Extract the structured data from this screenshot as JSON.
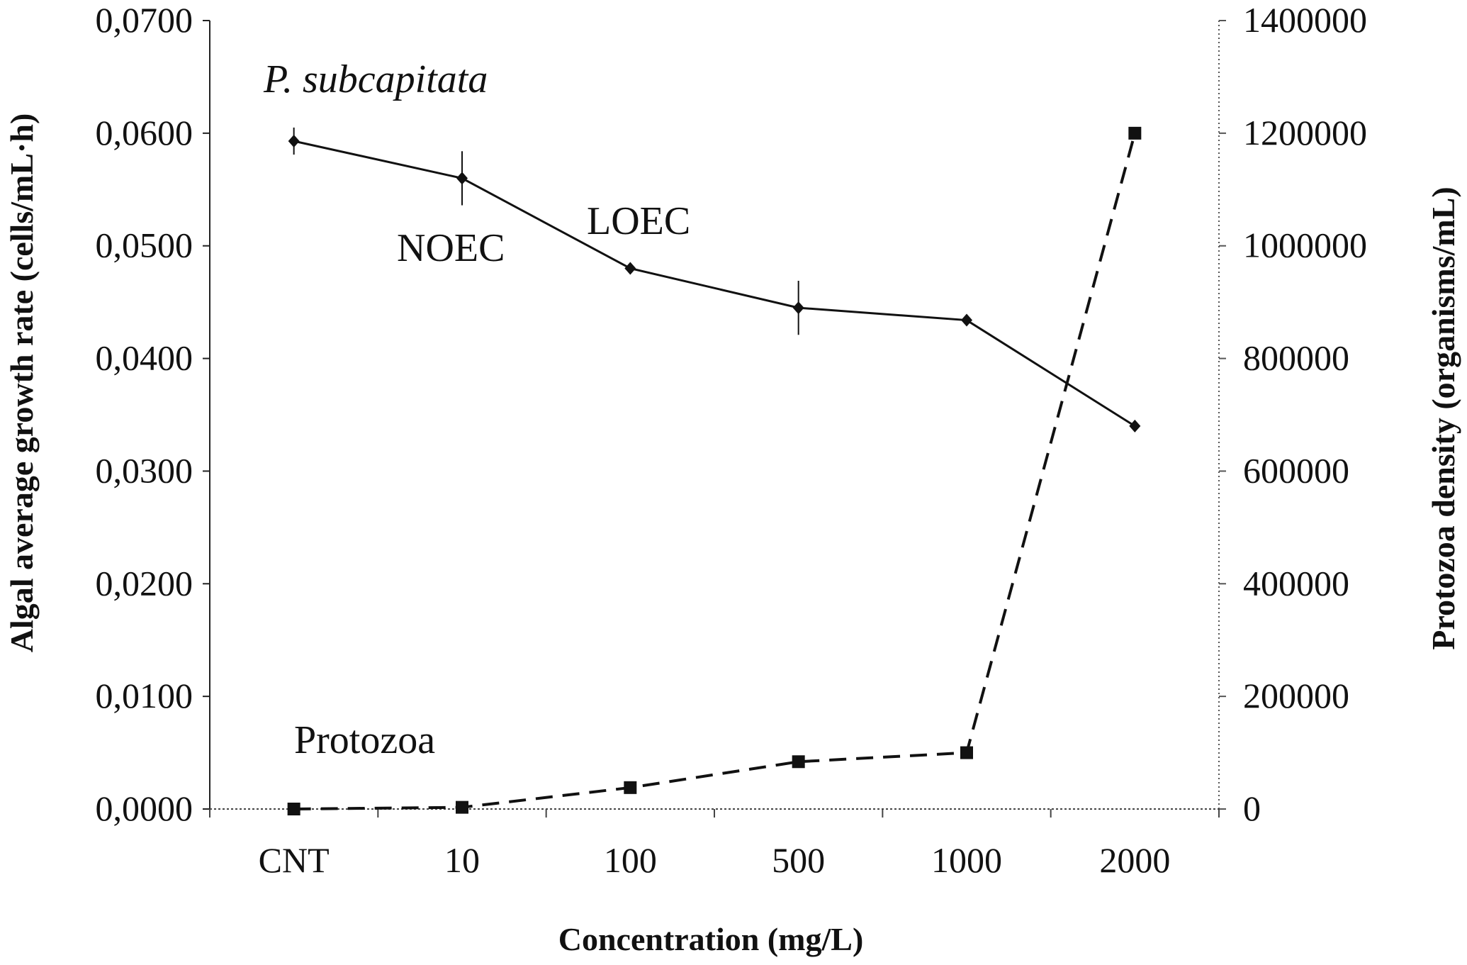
{
  "chart_data": {
    "type": "line",
    "categories": [
      "CNT",
      "10",
      "100",
      "500",
      "1000",
      "2000"
    ],
    "xlabel": "Concentration (mg/L)",
    "ylabel_left": "Algal average growth rate (cells/mL·h)",
    "ylabel_right": "Protozoa density (organisms/mL)",
    "y_left": {
      "lim": [
        0,
        0.07
      ],
      "ticks": [
        0,
        0.01,
        0.02,
        0.03,
        0.04,
        0.05,
        0.06,
        0.07
      ],
      "tick_labels": [
        "0,0000",
        "0,0100",
        "0,0200",
        "0,0300",
        "0,0400",
        "0,0500",
        "0,0600",
        "0,0700"
      ]
    },
    "y_right": {
      "lim": [
        0,
        1400000
      ],
      "ticks": [
        0,
        200000,
        400000,
        600000,
        800000,
        1000000,
        1200000,
        1400000
      ],
      "tick_labels": [
        "0",
        "200000",
        "400000",
        "600000",
        "800000",
        "1000000",
        "1200000",
        "1400000"
      ]
    },
    "series": [
      {
        "name": "P. subcapitata",
        "axis": "left",
        "style": "solid",
        "marker": "diamond",
        "values": [
          0.0593,
          0.056,
          0.048,
          0.0445,
          0.0434,
          0.034
        ],
        "errors": [
          0.0012,
          0.0024,
          0.0005,
          0.0024,
          0.0005,
          0.0005
        ]
      },
      {
        "name": "Protozoa",
        "axis": "right",
        "style": "dashed",
        "marker": "square",
        "values": [
          0,
          3000,
          38000,
          84000,
          100000,
          1200000
        ]
      }
    ],
    "annotations": [
      {
        "text": "P. subcapitata",
        "italic": true
      },
      {
        "text": "NOEC"
      },
      {
        "text": "LOEC"
      },
      {
        "text": "Protozoa"
      }
    ]
  }
}
